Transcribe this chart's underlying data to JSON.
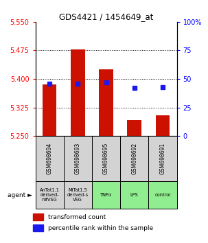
{
  "title": "GDS4421 / 1454649_at",
  "samples": [
    "GSM698694",
    "GSM698693",
    "GSM698695",
    "GSM698692",
    "GSM698691"
  ],
  "agents": [
    "AnTat1.1\nderived-\nmfVSG",
    "MiTat1.5\nderived-s\nVSG",
    "TNFα",
    "LPS",
    "control"
  ],
  "agent_colors": [
    "#d3d3d3",
    "#d3d3d3",
    "#90ee90",
    "#90ee90",
    "#90ee90"
  ],
  "red_values": [
    5.385,
    5.478,
    5.425,
    5.292,
    5.305
  ],
  "blue_values_pct": [
    46,
    46,
    47,
    42,
    43
  ],
  "y_min": 5.25,
  "y_max": 5.55,
  "y_ticks_red": [
    5.25,
    5.325,
    5.4,
    5.475,
    5.55
  ],
  "y_ticks_blue": [
    0,
    25,
    50,
    75,
    100
  ],
  "bar_color": "#cc1100",
  "blue_color": "#1a1aee",
  "legend_red": "transformed count",
  "legend_blue": "percentile rank within the sample"
}
